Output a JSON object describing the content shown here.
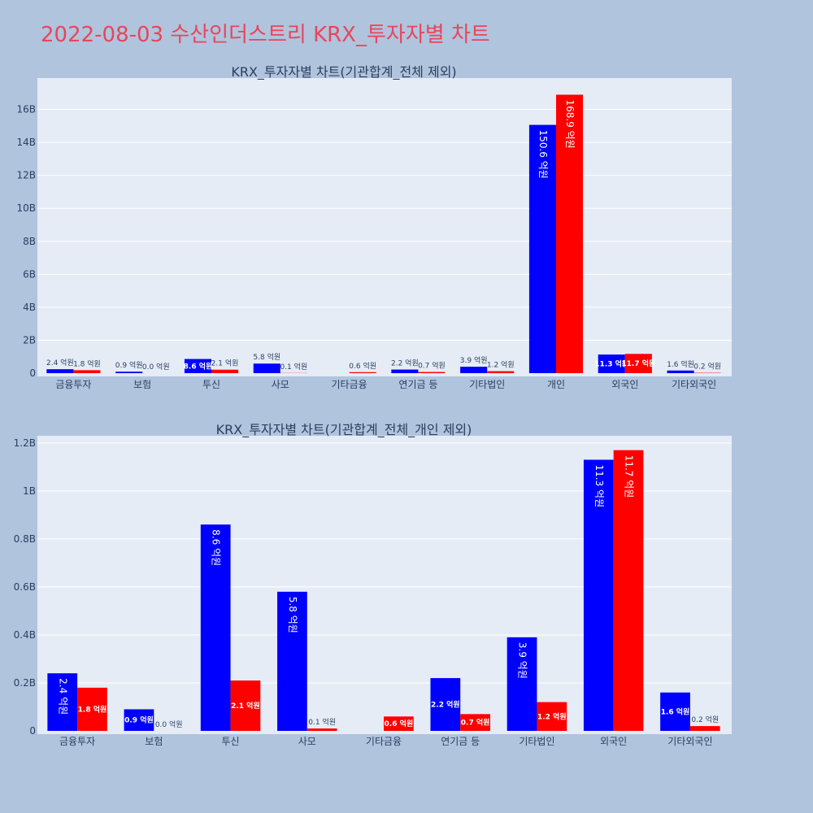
{
  "page_title": "2022-08-03 수산인더스트리 KRX_투자자별 차트",
  "colors": {
    "buy": "#0000ff",
    "sell": "#ff0000",
    "title": "#e8465a",
    "page_bg": "#b0c4de",
    "plot_bg": "#e5ecf6"
  },
  "chart_data": [
    {
      "type": "bar",
      "title": "KRX_투자자별 차트(기관합계_전체 제외)",
      "categories": [
        "금융투자",
        "보험",
        "투신",
        "사모",
        "기타금융",
        "연기금 등",
        "기타법인",
        "개인",
        "외국인",
        "기타외국인"
      ],
      "series": [
        {
          "color": "#0000ff",
          "values": [
            240000000,
            90000000,
            860000000,
            580000000,
            0,
            220000000,
            390000000,
            15060000000,
            1130000000,
            160000000
          ],
          "labels": [
            "2.4 억원",
            "0.9 억원",
            "8.6 억원",
            "5.8 억원",
            "",
            "2.2 억원",
            "3.9 억원",
            "150.6 억원",
            "11.3 억원",
            "1.6 억원"
          ]
        },
        {
          "color": "#ff0000",
          "values": [
            180000000,
            0,
            210000000,
            10000000,
            60000000,
            70000000,
            120000000,
            16890000000,
            1170000000,
            20000000
          ],
          "labels": [
            "1.8 억원",
            "0.0 억원",
            "2.1 억원",
            "0.1 억원",
            "0.6 억원",
            "0.7 억원",
            "1.2 억원",
            "168.9 억원",
            "11.7 억원",
            "0.2 억원"
          ]
        }
      ],
      "yticks": [
        0,
        2000000000,
        4000000000,
        6000000000,
        8000000000,
        10000000000,
        12000000000,
        14000000000,
        16000000000
      ],
      "ytick_labels": [
        "0",
        "2B",
        "4B",
        "6B",
        "8B",
        "10B",
        "12B",
        "14B",
        "16B"
      ],
      "ylim": [
        0,
        17900000000
      ],
      "grid": true
    },
    {
      "type": "bar",
      "title": "KRX_투자자별 차트(기관합계_전체_개인 제외)",
      "categories": [
        "금융투자",
        "보험",
        "투신",
        "사모",
        "기타금융",
        "연기금 등",
        "기타법인",
        "외국인",
        "기타외국인"
      ],
      "series": [
        {
          "color": "#0000ff",
          "values": [
            240000000,
            90000000,
            860000000,
            580000000,
            0,
            220000000,
            390000000,
            1130000000,
            160000000
          ],
          "labels": [
            "2.4 억원",
            "0.9 억원",
            "8.6 억원",
            "5.8 억원",
            "",
            "2.2 억원",
            "3.9 억원",
            "11.3 억원",
            "1.6 억원"
          ]
        },
        {
          "color": "#ff0000",
          "values": [
            180000000,
            0,
            210000000,
            10000000,
            60000000,
            70000000,
            120000000,
            1170000000,
            20000000
          ],
          "labels": [
            "1.8 억원",
            "0.0 억원",
            "2.1 억원",
            "0.1 억원",
            "0.6 억원",
            "0.7 억원",
            "1.2 억원",
            "11.7 억원",
            "0.2 억원"
          ]
        }
      ],
      "yticks": [
        0,
        200000000,
        400000000,
        600000000,
        800000000,
        1000000000,
        1200000000
      ],
      "ytick_labels": [
        "0",
        "0.2B",
        "0.4B",
        "0.6B",
        "0.8B",
        "1B",
        "1.2B"
      ],
      "ylim": [
        0,
        1230000000
      ],
      "grid": true
    }
  ]
}
